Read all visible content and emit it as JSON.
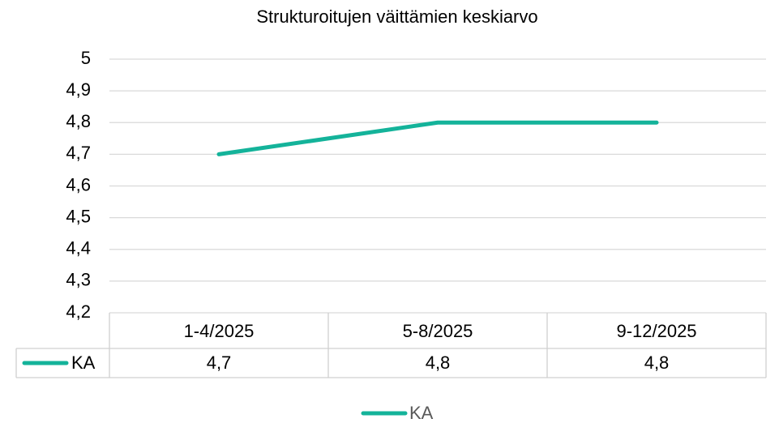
{
  "chart_data": {
    "type": "line",
    "title": "Strukturoitujen väittämien keskiarvo",
    "categories": [
      "1-4/2025",
      "5-8/2025",
      "9-12/2025"
    ],
    "series": [
      {
        "name": "KA",
        "color": "#14b39a",
        "values": [
          4.7,
          4.8,
          4.8
        ],
        "value_labels": [
          "4,7",
          "4,8",
          "4,8"
        ]
      }
    ],
    "ylim": [
      4.2,
      5
    ],
    "yticks": [
      {
        "value": 4.2,
        "label": "4,2"
      },
      {
        "value": 4.3,
        "label": "4,3"
      },
      {
        "value": 4.4,
        "label": "4,4"
      },
      {
        "value": 4.5,
        "label": "4,5"
      },
      {
        "value": 4.6,
        "label": "4,6"
      },
      {
        "value": 4.7,
        "label": "4,7"
      },
      {
        "value": 4.8,
        "label": "4,8"
      },
      {
        "value": 4.9,
        "label": "4,9"
      },
      5
    ],
    "grid": true,
    "legend": "bottom"
  }
}
